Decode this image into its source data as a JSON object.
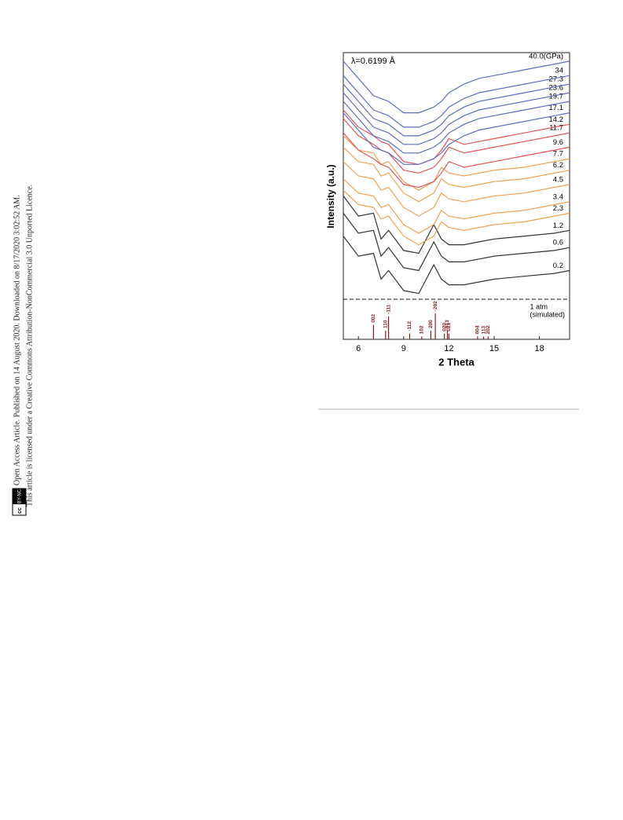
{
  "sidebar": {
    "line1": "Open Access Article. Published on 14 August 2020. Downloaded on 8/17/2020 3:02:52 AM.",
    "line2": "This article is licensed under a Creative Commons Attribution-NonCommercial 3.0 Unported Licence.",
    "badge": [
      "cc",
      "BY-NC"
    ]
  },
  "chart_data": {
    "type": "line",
    "annotation": "λ=0.6199 Å",
    "x_label": "2 Theta",
    "y_label": "Intensity (a.u.)",
    "xlim": [
      5,
      20
    ],
    "xticks": [
      6,
      9,
      12,
      15,
      18
    ],
    "ylim": [
      0,
      100
    ],
    "x": [
      5,
      6,
      7,
      7.5,
      8,
      9,
      10,
      11,
      11.5,
      12,
      13,
      14,
      15,
      17,
      19,
      20
    ],
    "series": [
      {
        "name": "0.2",
        "color": "#333333",
        "values": [
          36,
          29,
          30,
          21,
          24,
          17,
          16,
          26,
          21,
          19,
          19,
          20,
          21,
          22,
          23,
          24
        ]
      },
      {
        "name": "0.6",
        "color": "#333333",
        "values": [
          44,
          37,
          38,
          29,
          32,
          25,
          24,
          34,
          29,
          27,
          27,
          28,
          29,
          30,
          31,
          32
        ]
      },
      {
        "name": "1.2",
        "color": "#333333",
        "values": [
          50,
          43,
          44,
          35,
          38,
          31,
          30,
          40,
          35,
          33,
          33,
          34,
          35,
          36,
          37,
          38
        ]
      },
      {
        "name": "2.3",
        "color": "#f0a050",
        "values": [
          52,
          47,
          46,
          42,
          43,
          36,
          33,
          36,
          41,
          39,
          38,
          39,
          40,
          41,
          43,
          44
        ]
      },
      {
        "name": "3.4",
        "color": "#f0a050",
        "values": [
          56,
          51,
          50,
          46,
          47,
          40,
          37,
          40,
          45,
          43,
          42,
          43,
          44,
          45,
          47,
          48
        ]
      },
      {
        "name": "4.5",
        "color": "#f0a050",
        "values": [
          62,
          57,
          56,
          52,
          53,
          46,
          43,
          46,
          51,
          49,
          48,
          49,
          50,
          51,
          53,
          54
        ]
      },
      {
        "name": "6.2",
        "color": "#f0a050",
        "values": [
          67,
          62,
          61,
          57,
          58,
          51,
          48,
          51,
          56,
          54,
          53,
          54,
          55,
          56,
          58,
          59
        ]
      },
      {
        "name": "7.7",
        "color": "#f0a050",
        "values": [
          71,
          66,
          65,
          61,
          62,
          55,
          52,
          55,
          60,
          58,
          57,
          58,
          59,
          60,
          62,
          63
        ]
      },
      {
        "name": "9.6",
        "color": "#e05555",
        "values": [
          72,
          66,
          63,
          61,
          60,
          54,
          53,
          55,
          58,
          62,
          60,
          61,
          62,
          64,
          66,
          67
        ]
      },
      {
        "name": "11.7",
        "color": "#e05555",
        "values": [
          77,
          71,
          68,
          66,
          65,
          59,
          58,
          60,
          63,
          67,
          65,
          66,
          67,
          69,
          71,
          72
        ]
      },
      {
        "name": "14.2",
        "color": "#e05555",
        "values": [
          80,
          74,
          71,
          69,
          68,
          62,
          61,
          63,
          66,
          70,
          68,
          69,
          70,
          72,
          74,
          75
        ]
      },
      {
        "name": "17.1",
        "color": "#5a6fc0",
        "values": [
          79,
          73,
          67,
          66,
          65,
          61,
          61,
          63,
          65,
          68,
          71,
          73,
          74,
          76,
          78,
          79
        ]
      },
      {
        "name": "19.7",
        "color": "#5a6fc0",
        "values": [
          83,
          77,
          71,
          70,
          69,
          65,
          65,
          67,
          69,
          72,
          75,
          77,
          78,
          80,
          82,
          83
        ]
      },
      {
        "name": "23.6",
        "color": "#5a6fc0",
        "values": [
          86,
          80,
          74,
          73,
          72,
          68,
          68,
          70,
          72,
          75,
          78,
          80,
          81,
          83,
          85,
          86
        ]
      },
      {
        "name": "27.3",
        "color": "#5a6fc0",
        "values": [
          89,
          83,
          77,
          76,
          75,
          71,
          71,
          73,
          75,
          78,
          81,
          83,
          84,
          86,
          88,
          89
        ]
      },
      {
        "name": "34",
        "color": "#5a6fc0",
        "values": [
          92,
          86,
          80,
          79,
          78,
          74,
          74,
          76,
          78,
          81,
          84,
          86,
          87,
          89,
          91,
          92
        ]
      },
      {
        "name": "40.0(GPa)",
        "color": "#5a6fc0",
        "values": [
          97,
          91,
          85,
          84,
          83,
          79,
          79,
          81,
          83,
          86,
          89,
          91,
          92,
          94,
          96,
          97
        ]
      }
    ],
    "reference": {
      "name": [
        "1 atm",
        "(simulated)"
      ],
      "color": "#8b1a1a",
      "labels": [
        "002",
        "110",
        "-111",
        "-112",
        "102",
        "200",
        "-202",
        "020",
        "013",
        "021",
        "004",
        "113",
        "202"
      ],
      "positions": [
        7.0,
        7.8,
        8.0,
        9.4,
        10.2,
        10.8,
        11.1,
        11.7,
        11.9,
        12.0,
        13.9,
        14.3,
        14.6
      ],
      "values": [
        5,
        3,
        8,
        2,
        1,
        3,
        9,
        2,
        3,
        2,
        1,
        1,
        1
      ]
    }
  }
}
